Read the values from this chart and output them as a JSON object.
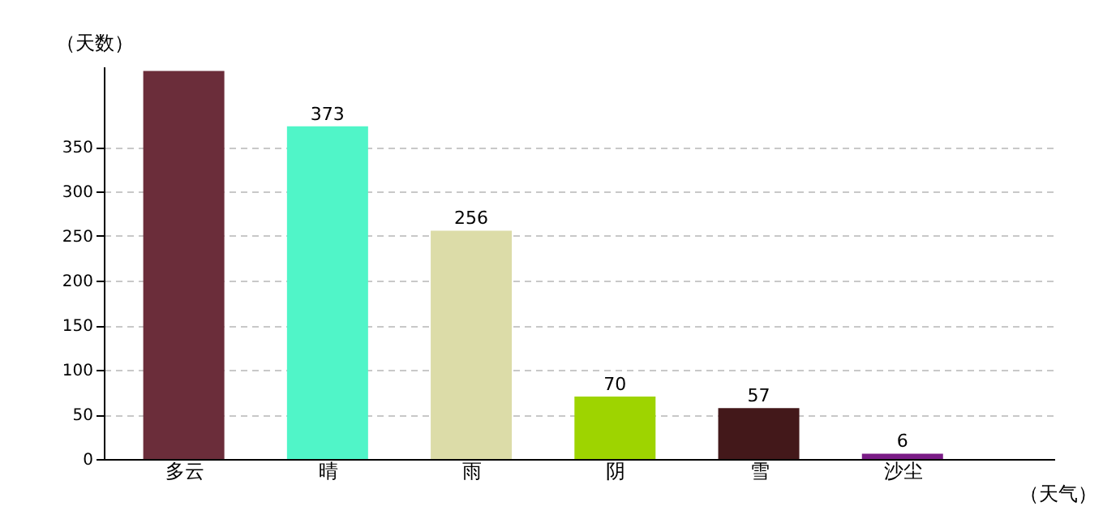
{
  "chart_data": {
    "type": "bar",
    "categories": [
      "多云",
      "晴",
      "雨",
      "阴",
      "雪",
      "沙尘"
    ],
    "values": [
      435,
      373,
      256,
      70,
      57,
      6
    ],
    "value_labels": [
      null,
      "373",
      "256",
      "70",
      "57",
      "6"
    ],
    "colors": [
      "#6b2d3a",
      "#50f5c8",
      "#dcdca8",
      "#9ed400",
      "#43181a",
      "#7a1c86"
    ],
    "xlabel": "（天气）",
    "ylabel": "（天数）",
    "ylim": [
      0,
      440
    ],
    "yticks": [
      0,
      50,
      100,
      150,
      200,
      250,
      300,
      350
    ],
    "grid": "y"
  }
}
